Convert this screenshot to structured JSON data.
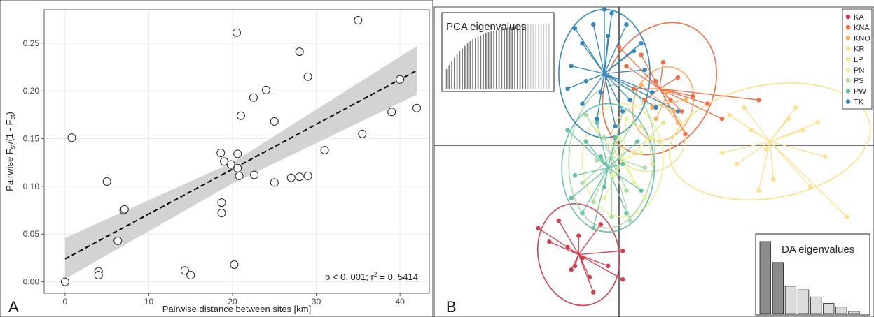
{
  "panels": {
    "a_label": "A",
    "b_label": "B"
  },
  "chart_data": [
    {
      "type": "scatter",
      "panel": "A",
      "title": "",
      "xlabel": "Pairwise distance between sites [km]",
      "ylabel": {
        "main": "Pairwise F",
        "sub1": "st",
        "mid": "/(1 - F",
        "sub2": "st",
        "end": ")"
      },
      "xlim": [
        -2.5,
        43.5
      ],
      "ylim": [
        -0.012,
        0.285
      ],
      "xticks": [
        0,
        10,
        20,
        30,
        40
      ],
      "yticks": [
        0.0,
        0.05,
        0.1,
        0.15,
        0.2,
        0.25
      ],
      "ytick_labels": [
        "0.00",
        "0.05",
        "0.10",
        "0.15",
        "0.20",
        "0.25"
      ],
      "grid": true,
      "annotation": {
        "text": "p < 0. 001; r",
        "sup": "2",
        "tail": " = 0. 5414"
      },
      "regression": {
        "intercept": 0.024,
        "slope": 0.0047,
        "x_range": [
          0,
          42
        ],
        "ci": [
          [
            0,
            0.003,
            0.046
          ],
          [
            20,
            0.103,
            0.125
          ],
          [
            42,
            0.196,
            0.247
          ]
        ]
      },
      "colors": {
        "ribbon": "#d3d3d3",
        "point_stroke": "#222222",
        "line": "#000000"
      },
      "points": [
        [
          0,
          0.0
        ],
        [
          0.8,
          0.151
        ],
        [
          4,
          0.011
        ],
        [
          4,
          0.007
        ],
        [
          5,
          0.105
        ],
        [
          6.3,
          0.043
        ],
        [
          7,
          0.075
        ],
        [
          7.1,
          0.076
        ],
        [
          14.3,
          0.012
        ],
        [
          15,
          0.007
        ],
        [
          18.6,
          0.135
        ],
        [
          18.7,
          0.083
        ],
        [
          18.7,
          0.072
        ],
        [
          19,
          0.126
        ],
        [
          19.8,
          0.123
        ],
        [
          20.2,
          0.018
        ],
        [
          20.5,
          0.261
        ],
        [
          20.6,
          0.134
        ],
        [
          20.6,
          0.119
        ],
        [
          20.8,
          0.111
        ],
        [
          21,
          0.174
        ],
        [
          22.5,
          0.193
        ],
        [
          22.6,
          0.112
        ],
        [
          24,
          0.201
        ],
        [
          25,
          0.168
        ],
        [
          25,
          0.104
        ],
        [
          27,
          0.109
        ],
        [
          28,
          0.241
        ],
        [
          28,
          0.11
        ],
        [
          29,
          0.215
        ],
        [
          29,
          0.111
        ],
        [
          31,
          0.138
        ],
        [
          35,
          0.274
        ],
        [
          35.5,
          0.155
        ],
        [
          39,
          0.178
        ],
        [
          40,
          0.212
        ],
        [
          42,
          0.182
        ]
      ]
    },
    {
      "type": "scatter",
      "panel": "B",
      "title": "",
      "legend_position": "top-right",
      "inset_pca": {
        "title": "PCA eigenvalues",
        "values": [
          0.3,
          0.36,
          0.42,
          0.48,
          0.53,
          0.58,
          0.62,
          0.66,
          0.7,
          0.73,
          0.76,
          0.78,
          0.8,
          0.82,
          0.84,
          0.86,
          0.87,
          0.88,
          0.89,
          0.9,
          0.91,
          0.92,
          0.93,
          0.94,
          0.95,
          0.95,
          0.96,
          0.97,
          0.97,
          0.98,
          0.98,
          0.99,
          0.99,
          0.99,
          1.0,
          1.0,
          1.0,
          1.0,
          1.0,
          1.0
        ],
        "retained": 31,
        "colors": {
          "retained": "#7a7a7a",
          "other": "#cfcfcf"
        }
      },
      "inset_da": {
        "title": "DA eigenvalues",
        "values": [
          1.0,
          0.71,
          0.38,
          0.33,
          0.23,
          0.14,
          0.09,
          0.03
        ],
        "retained": 2,
        "colors": {
          "retained": "#8c8c8c",
          "other": "#dcdcdc"
        }
      },
      "groups": [
        {
          "name": "KA",
          "color": "#d53e4f",
          "center": [
            -0.55,
            -1.45
          ],
          "ellipse": [
            0.55,
            0.68,
            -12
          ],
          "points": [
            [
              -1.1,
              -1.1
            ],
            [
              -0.95,
              -1.28
            ],
            [
              -0.82,
              -1.0
            ],
            [
              -0.7,
              -1.35
            ],
            [
              -0.6,
              -1.6
            ],
            [
              -0.55,
              -1.2
            ],
            [
              -0.4,
              -1.75
            ],
            [
              -0.35,
              -1.95
            ],
            [
              -0.25,
              -1.05
            ],
            [
              -0.15,
              -1.6
            ],
            [
              0.05,
              -1.4
            ],
            [
              0.05,
              -1.78
            ],
            [
              -0.5,
              -1.5
            ],
            [
              -0.65,
              -1.65
            ]
          ]
        },
        {
          "name": "KNA",
          "color": "#f46d43",
          "center": [
            0.55,
            0.75
          ],
          "ellipse": [
            0.72,
            0.92,
            28
          ],
          "points": [
            [
              0.0,
              1.3
            ],
            [
              0.1,
              1.05
            ],
            [
              0.3,
              1.2
            ],
            [
              0.5,
              0.85
            ],
            [
              0.7,
              0.6
            ],
            [
              0.85,
              0.45
            ],
            [
              1.0,
              0.65
            ],
            [
              1.4,
              0.35
            ],
            [
              0.6,
              1.1
            ],
            [
              0.2,
              0.75
            ],
            [
              0.8,
              0.9
            ],
            [
              1.2,
              0.55
            ],
            [
              1.9,
              0.6
            ],
            [
              0.35,
              0.6
            ],
            [
              0.9,
              0.15
            ]
          ]
        },
        {
          "name": "KNO",
          "color": "#fdae61",
          "center": [
            0.6,
            0.55
          ],
          "ellipse": [
            0.4,
            0.5,
            20
          ],
          "points": [
            [
              0.3,
              0.8
            ],
            [
              0.5,
              0.35
            ],
            [
              0.65,
              0.7
            ],
            [
              0.8,
              0.3
            ],
            [
              0.9,
              0.6
            ],
            [
              0.45,
              0.5
            ],
            [
              0.75,
              0.45
            ]
          ]
        },
        {
          "name": "KR",
          "color": "#fee08b",
          "center": [
            2.05,
            0.05
          ],
          "ellipse": [
            1.38,
            0.75,
            -10
          ],
          "points": [
            [
              1.5,
              0.4
            ],
            [
              1.7,
              0.5
            ],
            [
              1.8,
              0.2
            ],
            [
              2.0,
              -0.05
            ],
            [
              2.1,
              -0.45
            ],
            [
              2.3,
              0.35
            ],
            [
              2.5,
              0.2
            ],
            [
              2.6,
              -0.55
            ],
            [
              2.8,
              -0.15
            ],
            [
              3.1,
              -0.95
            ],
            [
              1.4,
              -0.1
            ],
            [
              1.6,
              -0.25
            ],
            [
              2.4,
              0.5
            ],
            [
              1.9,
              -0.6
            ],
            [
              2.7,
              0.3
            ]
          ]
        },
        {
          "name": "LP",
          "color": "#ffffbf",
          "center": [
            0.4,
            0.1
          ],
          "ellipse": [
            0.5,
            0.45,
            0
          ],
          "points": [
            [
              0.3,
              0.25
            ],
            [
              0.55,
              0.05
            ],
            [
              0.2,
              -0.1
            ],
            [
              0.6,
              0.3
            ],
            [
              0.45,
              -0.25
            ]
          ]
        },
        {
          "name": "PN",
          "color": "#e6f598",
          "center": [
            0.05,
            -0.2
          ],
          "ellipse": [
            0.55,
            0.75,
            0
          ],
          "points": [
            [
              -0.3,
              0.2
            ],
            [
              0.1,
              0.35
            ],
            [
              0.3,
              -0.1
            ],
            [
              0.2,
              -0.5
            ],
            [
              -0.1,
              -0.4
            ],
            [
              0.45,
              0.1
            ],
            [
              -0.2,
              -0.7
            ],
            [
              0.35,
              -0.7
            ],
            [
              0.0,
              0.1
            ]
          ]
        },
        {
          "name": "PS",
          "color": "#abdda4",
          "center": [
            -0.1,
            -0.15
          ],
          "ellipse": [
            0.58,
            0.95,
            5
          ],
          "points": [
            [
              -0.45,
              0.4
            ],
            [
              -0.3,
              -0.2
            ],
            [
              -0.2,
              0.1
            ],
            [
              0.1,
              -0.6
            ],
            [
              -0.5,
              -0.5
            ],
            [
              0.2,
              0.3
            ],
            [
              -0.1,
              -0.95
            ],
            [
              0.35,
              -0.3
            ],
            [
              -0.35,
              -0.75
            ],
            [
              0.15,
              -1.0
            ],
            [
              0.05,
              0.45
            ]
          ]
        },
        {
          "name": "PW",
          "color": "#66c2a5",
          "center": [
            -0.15,
            -0.3
          ],
          "ellipse": [
            0.63,
            0.85,
            0
          ],
          "points": [
            [
              -0.7,
              0.2
            ],
            [
              -0.6,
              -0.4
            ],
            [
              -0.5,
              -0.9
            ],
            [
              -0.3,
              0.3
            ],
            [
              -0.2,
              -0.55
            ],
            [
              0.05,
              -0.25
            ],
            [
              0.3,
              -0.6
            ],
            [
              -0.45,
              0.05
            ],
            [
              -0.35,
              -1.1
            ],
            [
              -0.05,
              0.1
            ],
            [
              0.1,
              -0.9
            ],
            [
              -0.65,
              -0.7
            ],
            [
              0.25,
              0.05
            ],
            [
              -0.25,
              -0.15
            ]
          ]
        },
        {
          "name": "TK",
          "color": "#3288bd",
          "center": [
            -0.2,
            0.95
          ],
          "ellipse": [
            0.62,
            0.85,
            0
          ],
          "points": [
            [
              -0.2,
              1.8
            ],
            [
              -0.35,
              1.6
            ],
            [
              -0.5,
              1.35
            ],
            [
              -0.65,
              1.05
            ],
            [
              -0.7,
              0.75
            ],
            [
              -0.5,
              0.55
            ],
            [
              -0.3,
              0.35
            ],
            [
              -0.05,
              0.25
            ],
            [
              0.15,
              0.6
            ],
            [
              0.35,
              1.0
            ],
            [
              0.3,
              1.35
            ],
            [
              0.1,
              1.6
            ],
            [
              -0.6,
              1.55
            ],
            [
              -0.15,
              1.45
            ],
            [
              0.45,
              0.7
            ],
            [
              -0.45,
              0.85
            ],
            [
              0.05,
              0.45
            ],
            [
              0.2,
              1.25
            ],
            [
              -0.25,
              0.7
            ],
            [
              0.5,
              0.5
            ],
            [
              0.8,
              0.45
            ],
            [
              -0.1,
              1.75
            ]
          ]
        }
      ]
    }
  ]
}
